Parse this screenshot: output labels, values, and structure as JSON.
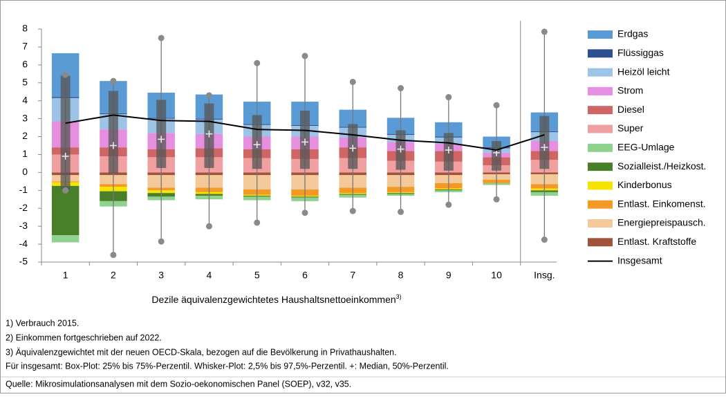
{
  "chart_data": {
    "type": "bar",
    "stacked": true,
    "x_label": "Dezile äquivalenzgewichtetes Haushaltsnettoeinkommen",
    "x_label_sup": "3)",
    "categories": [
      "1",
      "2",
      "3",
      "4",
      "5",
      "6",
      "7",
      "8",
      "9",
      "10",
      "Insg."
    ],
    "ylim": [
      -5,
      8
    ],
    "yticks": [
      -5,
      -4,
      -3,
      -2,
      -1,
      0,
      1,
      2,
      3,
      4,
      5,
      6,
      7,
      8
    ],
    "series": [
      {
        "name": "Erdgas",
        "color": "#5b9bd5",
        "values": [
          2.45,
          1.8,
          1.4,
          1.35,
          1.25,
          1.3,
          0.95,
          0.9,
          0.8,
          0.6,
          1.05
        ]
      },
      {
        "name": "Flüssiggas",
        "color": "#2e4f8f",
        "values": [
          0.05,
          0.05,
          0.05,
          0.05,
          0.05,
          0.05,
          0.05,
          0.05,
          0.05,
          0.05,
          0.05
        ]
      },
      {
        "name": "Heizöl leicht",
        "color": "#9dc3e6",
        "values": [
          1.3,
          0.85,
          0.8,
          0.8,
          0.65,
          0.6,
          0.55,
          0.4,
          0.35,
          0.25,
          0.5
        ]
      },
      {
        "name": "Strom",
        "color": "#e68fe0",
        "values": [
          1.45,
          1.0,
          0.9,
          0.8,
          0.7,
          0.7,
          0.55,
          0.5,
          0.4,
          0.25,
          0.55
        ]
      },
      {
        "name": "Diesel",
        "color": "#cf6565",
        "values": [
          0.4,
          0.5,
          0.45,
          0.5,
          0.5,
          0.55,
          0.6,
          0.55,
          0.6,
          0.45,
          0.5
        ]
      },
      {
        "name": "Super",
        "color": "#f0a0a0",
        "values": [
          1.0,
          0.9,
          0.85,
          0.85,
          0.8,
          0.75,
          0.8,
          0.65,
          0.6,
          0.4,
          0.7
        ]
      },
      {
        "name": "EEG-Umlage",
        "color": "#8fd18f",
        "values": [
          -0.4,
          -0.3,
          -0.2,
          -0.2,
          -0.2,
          -0.2,
          -0.15,
          -0.1,
          -0.1,
          -0.1,
          -0.2
        ]
      },
      {
        "name": "Sozialleist./Heizkost.",
        "color": "#4a7f2a",
        "values": [
          -2.75,
          -0.55,
          -0.2,
          -0.1,
          -0.05,
          -0.05,
          -0.05,
          -0.05,
          -0.05,
          0,
          -0.1
        ]
      },
      {
        "name": "Kinderbonus",
        "color": "#f5e400",
        "values": [
          -0.2,
          -0.25,
          -0.15,
          -0.1,
          -0.05,
          -0.05,
          -0.05,
          -0.05,
          -0.05,
          0,
          -0.1
        ]
      },
      {
        "name": "Entlast. Einkomenst.",
        "color": "#f39a26",
        "values": [
          -0.05,
          -0.15,
          -0.15,
          -0.25,
          -0.3,
          -0.35,
          -0.3,
          -0.3,
          -0.3,
          -0.2,
          -0.25
        ]
      },
      {
        "name": "Energiepreispausch.",
        "color": "#f4c99a",
        "values": [
          -0.35,
          -0.5,
          -0.7,
          -0.7,
          -0.8,
          -0.8,
          -0.7,
          -0.65,
          -0.45,
          -0.3,
          -0.55
        ]
      },
      {
        "name": "Entlast. Kraftstoffe",
        "color": "#a0523a",
        "values": [
          -0.15,
          -0.15,
          -0.15,
          -0.15,
          -0.15,
          -0.15,
          -0.15,
          -0.15,
          -0.15,
          -0.1,
          -0.1
        ]
      },
      {
        "name": "Insgesamt",
        "type": "line",
        "color": "#000000",
        "values": [
          2.75,
          3.2,
          2.9,
          2.85,
          2.4,
          2.35,
          2.1,
          1.8,
          1.65,
          1.25,
          2.1
        ]
      }
    ],
    "box": {
      "low": [
        -1.0,
        -4.6,
        -3.85,
        -3.0,
        -2.8,
        -2.25,
        -2.15,
        -2.2,
        -1.8,
        -1.5,
        -3.75
      ],
      "q1": [
        -0.95,
        -0.05,
        0.25,
        0.25,
        0.2,
        0.2,
        0.2,
        0.15,
        0.1,
        0.1,
        0.2
      ],
      "median": [
        0.9,
        1.5,
        1.85,
        2.15,
        1.55,
        1.7,
        1.35,
        1.3,
        1.25,
        1.1,
        1.4
      ],
      "q3": [
        5.4,
        4.55,
        4.05,
        3.85,
        3.2,
        3.45,
        2.7,
        2.35,
        2.2,
        1.75,
        3.15
      ],
      "high": [
        5.45,
        5.1,
        7.5,
        4.3,
        6.1,
        6.5,
        5.05,
        4.7,
        4.2,
        3.75,
        7.85
      ]
    }
  },
  "notes": [
    "1) Verbrauch 2015.",
    "2) Einkommen fortgeschrieben auf 2022.",
    "3) Äquivalenzgewichtet mit der neuen OECD-Skala, bezogen auf die Bevölkerung in Privathaushalten.",
    "Für insgesamt: Box-Plot: 25% bis 75%-Perzentil. Whisker-Plot: 2,5% bis 97,5%-Perzentil. +: Median, 50%-Perzentil."
  ],
  "source": "Quelle: Mikrosimulationsanalysen mit dem Sozio-oekonomischen Panel (SOEP), v32, v35."
}
